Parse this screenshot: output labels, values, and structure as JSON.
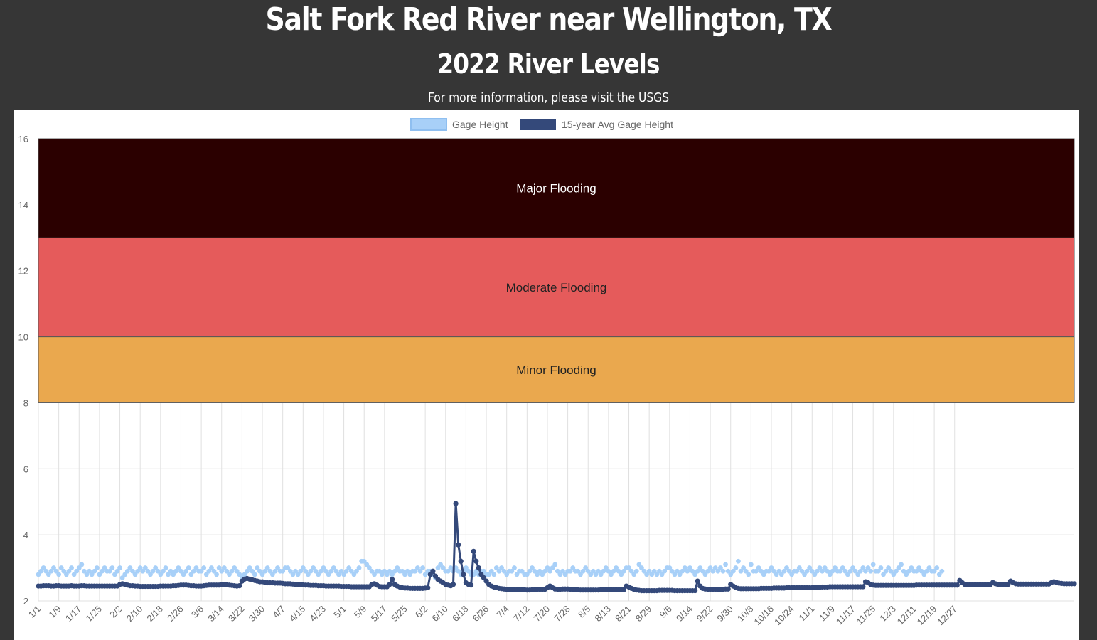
{
  "page": {
    "title": "Salt Fork Red River near Wellington, TX",
    "subtitle": "2022 River Levels",
    "info_text": "For more information, please visit the USGS"
  },
  "colors": {
    "background": "#363636",
    "panel": "#ffffff",
    "gage_height": "#a8d0f8",
    "avg_gage_height": "#34497a",
    "major_flooding": "#2b0000",
    "moderate_flooding": "#e55b5b",
    "minor_flooding": "#eaa84e",
    "grid": "#e0e0e0"
  },
  "chart_data": {
    "type": "line",
    "title": "",
    "xlabel": "",
    "ylabel": "",
    "ylim": [
      2,
      16
    ],
    "yticks": [
      2,
      4,
      6,
      8,
      10,
      12,
      14,
      16
    ],
    "grid": true,
    "legend_position": "top",
    "x_tick_labels": [
      "1/1",
      "1/9",
      "1/17",
      "1/25",
      "2/2",
      "2/10",
      "2/18",
      "2/26",
      "3/6",
      "3/14",
      "3/22",
      "3/30",
      "4/7",
      "4/15",
      "4/23",
      "5/1",
      "5/9",
      "5/17",
      "5/25",
      "6/2",
      "6/10",
      "6/18",
      "6/26",
      "7/4",
      "7/12",
      "7/20",
      "7/28",
      "8/5",
      "8/13",
      "8/21",
      "8/29",
      "9/6",
      "9/14",
      "9/22",
      "9/30",
      "10/8",
      "10/16",
      "10/24",
      "11/1",
      "11/9",
      "11/17",
      "11/25",
      "12/3",
      "12/11",
      "12/19",
      "12/27"
    ],
    "flood_bands": [
      {
        "label": "Minor Flooding",
        "from": 8,
        "to": 10,
        "color": "#eaa84e",
        "text_color": "#222222"
      },
      {
        "label": "Moderate Flooding",
        "from": 10,
        "to": 13,
        "color": "#e55b5b",
        "text_color": "#222222"
      },
      {
        "label": "Major Flooding",
        "from": 13,
        "to": 16,
        "color": "#2b0000",
        "text_color": "#ffffff"
      }
    ],
    "series": [
      {
        "name": "Gage Height",
        "color": "#a8d0f8",
        "style": "points",
        "values": [
          2.8,
          2.9,
          3.0,
          2.9,
          2.8,
          2.9,
          3.0,
          2.9,
          2.8,
          3.0,
          2.9,
          2.8,
          2.9,
          3.0,
          2.8,
          2.9,
          3.0,
          3.1,
          2.9,
          2.8,
          2.9,
          2.8,
          2.9,
          3.0,
          2.8,
          2.9,
          3.0,
          2.9,
          2.9,
          3.0,
          2.8,
          2.9,
          3.0,
          2.7,
          2.8,
          2.9,
          3.0,
          2.9,
          2.8,
          2.9,
          3.0,
          2.9,
          3.0,
          2.9,
          2.8,
          2.9,
          3.0,
          2.9,
          2.8,
          2.9,
          3.0,
          2.8,
          2.9,
          2.8,
          2.9,
          3.0,
          2.9,
          2.8,
          2.9,
          3.0,
          2.8,
          2.9,
          3.0,
          2.9,
          2.9,
          3.0,
          2.8,
          2.9,
          3.0,
          2.9,
          2.8,
          3.0,
          2.9,
          3.0,
          2.9,
          2.8,
          2.9,
          3.0,
          2.9,
          2.8,
          2.7,
          2.8,
          2.9,
          3.0,
          2.9,
          2.8,
          3.0,
          2.9,
          2.8,
          2.9,
          3.0,
          2.9,
          2.8,
          2.9,
          3.0,
          2.9,
          2.9,
          3.0,
          3.0,
          2.9,
          2.8,
          2.9,
          2.8,
          2.9,
          3.0,
          2.9,
          2.8,
          2.9,
          3.0,
          2.9,
          2.8,
          2.9,
          3.0,
          2.9,
          2.8,
          2.9,
          3.0,
          2.9,
          2.8,
          2.9,
          2.8,
          2.9,
          3.0,
          2.9,
          2.8,
          2.9,
          3.0,
          3.2,
          3.2,
          3.1,
          3.0,
          2.9,
          2.8,
          2.9,
          2.9,
          2.8,
          2.9,
          2.8,
          2.9,
          2.8,
          2.9,
          3.0,
          2.9,
          2.9,
          2.8,
          2.9,
          2.8,
          2.9,
          2.9,
          3.0,
          2.9,
          3.0,
          2.8,
          2.9,
          2.9,
          2.8,
          2.7,
          3.0,
          3.1,
          3.0,
          2.9,
          2.9,
          3.0,
          2.9,
          3.0,
          2.9,
          2.8,
          2.9,
          3.0,
          2.9,
          2.8,
          2.8,
          2.9,
          2.8,
          2.9,
          2.9,
          2.8,
          2.8,
          2.9,
          2.8,
          3.0,
          2.9,
          3.0,
          2.9,
          2.8,
          2.9,
          2.9,
          3.0,
          2.8,
          2.9,
          2.9,
          2.8,
          2.8,
          2.9,
          3.0,
          2.9,
          2.8,
          2.9,
          2.8,
          2.9,
          3.0,
          2.9,
          3.0,
          3.1,
          2.9,
          2.8,
          2.9,
          2.8,
          2.9,
          2.9,
          3.0,
          2.9,
          2.9,
          2.8,
          2.9,
          3.0,
          2.9,
          2.8,
          2.9,
          2.8,
          2.9,
          2.8,
          2.9,
          3.0,
          2.9,
          2.8,
          2.9,
          3.0,
          2.9,
          2.8,
          2.9,
          3.0,
          3.0,
          2.9,
          2.8,
          2.9,
          3.1,
          3.0,
          2.9,
          2.8,
          2.9,
          2.8,
          2.9,
          2.8,
          2.9,
          2.8,
          2.9,
          3.0,
          3.0,
          2.9,
          2.8,
          2.9,
          2.8,
          2.9,
          3.0,
          2.9,
          3.0,
          2.9,
          2.8,
          2.9,
          3.0,
          2.9,
          2.8,
          2.9,
          3.0,
          2.9,
          3.0,
          2.9,
          3.0,
          2.9,
          3.1,
          2.9,
          2.8,
          2.9,
          3.0,
          3.2,
          2.9,
          3.0,
          2.9,
          2.8,
          3.1,
          2.9,
          2.9,
          3.0,
          2.9,
          2.8,
          2.9,
          2.9,
          3.0,
          2.9,
          2.8,
          2.9,
          2.8,
          2.9,
          3.0,
          2.9,
          2.8,
          2.9,
          2.9,
          3.0,
          2.9,
          2.8,
          2.9,
          3.0,
          2.9,
          2.8,
          2.9,
          3.0,
          2.9,
          3.0,
          2.9,
          2.8,
          2.9,
          3.0,
          2.9,
          2.9,
          3.0,
          2.9,
          2.8,
          2.9,
          3.0,
          2.9,
          2.8,
          2.9,
          3.0,
          2.9,
          3.0,
          2.9,
          3.1,
          2.9,
          2.9,
          3.0,
          2.8,
          2.9,
          3.0,
          2.9,
          2.8,
          2.9,
          3.0,
          3.1,
          2.9,
          2.8,
          2.9,
          3.0,
          2.9,
          2.9,
          3.0,
          2.9,
          2.8,
          2.9,
          3.0,
          2.9,
          2.9,
          3.0,
          2.8,
          2.9
        ]
      },
      {
        "name": "15-year Avg Gage Height",
        "color": "#34497a",
        "style": "line",
        "values": [
          2.45,
          2.45,
          2.46,
          2.46,
          2.46,
          2.45,
          2.45,
          2.46,
          2.46,
          2.45,
          2.45,
          2.45,
          2.45,
          2.46,
          2.45,
          2.45,
          2.45,
          2.46,
          2.46,
          2.45,
          2.45,
          2.45,
          2.45,
          2.45,
          2.45,
          2.45,
          2.45,
          2.45,
          2.45,
          2.45,
          2.45,
          2.45,
          2.5,
          2.52,
          2.5,
          2.48,
          2.46,
          2.46,
          2.45,
          2.45,
          2.44,
          2.44,
          2.44,
          2.44,
          2.44,
          2.44,
          2.44,
          2.44,
          2.45,
          2.45,
          2.45,
          2.45,
          2.45,
          2.46,
          2.46,
          2.47,
          2.48,
          2.48,
          2.48,
          2.47,
          2.46,
          2.46,
          2.45,
          2.45,
          2.45,
          2.46,
          2.47,
          2.48,
          2.48,
          2.48,
          2.48,
          2.48,
          2.5,
          2.5,
          2.49,
          2.48,
          2.47,
          2.46,
          2.45,
          2.46,
          2.6,
          2.66,
          2.68,
          2.66,
          2.64,
          2.62,
          2.6,
          2.58,
          2.58,
          2.56,
          2.55,
          2.55,
          2.55,
          2.54,
          2.54,
          2.54,
          2.53,
          2.52,
          2.52,
          2.52,
          2.51,
          2.5,
          2.5,
          2.5,
          2.49,
          2.48,
          2.48,
          2.47,
          2.47,
          2.47,
          2.46,
          2.46,
          2.46,
          2.45,
          2.45,
          2.45,
          2.45,
          2.45,
          2.45,
          2.44,
          2.44,
          2.44,
          2.44,
          2.43,
          2.43,
          2.43,
          2.43,
          2.43,
          2.43,
          2.43,
          2.43,
          2.5,
          2.52,
          2.48,
          2.44,
          2.43,
          2.43,
          2.43,
          2.5,
          2.65,
          2.5,
          2.45,
          2.42,
          2.4,
          2.39,
          2.39,
          2.38,
          2.38,
          2.38,
          2.38,
          2.38,
          2.38,
          2.39,
          2.4,
          2.8,
          2.9,
          2.75,
          2.65,
          2.6,
          2.55,
          2.5,
          2.48,
          2.46,
          2.5,
          4.95,
          3.7,
          3.2,
          2.8,
          2.55,
          2.5,
          2.48,
          3.5,
          3.2,
          3.0,
          2.8,
          2.7,
          2.6,
          2.5,
          2.45,
          2.42,
          2.4,
          2.38,
          2.37,
          2.36,
          2.35,
          2.35,
          2.34,
          2.34,
          2.34,
          2.34,
          2.34,
          2.34,
          2.33,
          2.33,
          2.34,
          2.34,
          2.35,
          2.35,
          2.35,
          2.35,
          2.4,
          2.45,
          2.4,
          2.36,
          2.35,
          2.35,
          2.36,
          2.36,
          2.36,
          2.35,
          2.35,
          2.34,
          2.34,
          2.33,
          2.33,
          2.33,
          2.33,
          2.33,
          2.33,
          2.33,
          2.33,
          2.34,
          2.34,
          2.34,
          2.34,
          2.34,
          2.34,
          2.34,
          2.34,
          2.34,
          2.34,
          2.45,
          2.42,
          2.38,
          2.35,
          2.33,
          2.32,
          2.31,
          2.31,
          2.31,
          2.31,
          2.31,
          2.31,
          2.31,
          2.32,
          2.32,
          2.32,
          2.32,
          2.32,
          2.32,
          2.31,
          2.31,
          2.31,
          2.31,
          2.31,
          2.31,
          2.31,
          2.31,
          2.31,
          2.6,
          2.45,
          2.38,
          2.36,
          2.35,
          2.35,
          2.35,
          2.35,
          2.35,
          2.35,
          2.35,
          2.36,
          2.36,
          2.5,
          2.45,
          2.4,
          2.38,
          2.37,
          2.37,
          2.37,
          2.37,
          2.37,
          2.37,
          2.37,
          2.37,
          2.38,
          2.38,
          2.38,
          2.38,
          2.38,
          2.39,
          2.39,
          2.39,
          2.39,
          2.39,
          2.4,
          2.4,
          2.4,
          2.4,
          2.4,
          2.4,
          2.4,
          2.4,
          2.4,
          2.4,
          2.4,
          2.41,
          2.41,
          2.41,
          2.42,
          2.42,
          2.42,
          2.43,
          2.43,
          2.43,
          2.43,
          2.43,
          2.43,
          2.43,
          2.43,
          2.43,
          2.43,
          2.43,
          2.43,
          2.43,
          2.43,
          2.58,
          2.55,
          2.5,
          2.48,
          2.47,
          2.47,
          2.47,
          2.47,
          2.47,
          2.47,
          2.47,
          2.47,
          2.47,
          2.47,
          2.47,
          2.47,
          2.47,
          2.47,
          2.47,
          2.47,
          2.48,
          2.48,
          2.48,
          2.48,
          2.48,
          2.48,
          2.48,
          2.48,
          2.48,
          2.48,
          2.48,
          2.48,
          2.48,
          2.48,
          2.48,
          2.48,
          2.48,
          2.62,
          2.55,
          2.5,
          2.49,
          2.49,
          2.49,
          2.49,
          2.49,
          2.49,
          2.49,
          2.49,
          2.49,
          2.49,
          2.56,
          2.52,
          2.5,
          2.5,
          2.5,
          2.5,
          2.5,
          2.6,
          2.55,
          2.52,
          2.51,
          2.51,
          2.51,
          2.51,
          2.51,
          2.51,
          2.51,
          2.51,
          2.51,
          2.51,
          2.51,
          2.51,
          2.51,
          2.55,
          2.58,
          2.56,
          2.54,
          2.53,
          2.52,
          2.52,
          2.52,
          2.52,
          2.52
        ]
      }
    ]
  }
}
